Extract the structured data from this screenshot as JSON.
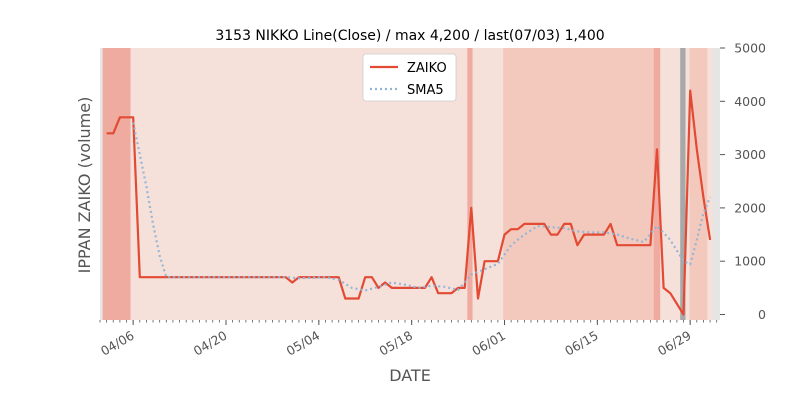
{
  "chart_data": {
    "type": "line",
    "title": "3153 NIKKO Line(Close) / max 4,200 / last(07/03) 1,400",
    "xlabel": "DATE",
    "ylabel": "IPPAN ZAIKO (volume)",
    "ylim": [
      0,
      5000
    ],
    "yticks": [
      0,
      1000,
      2000,
      3000,
      4000,
      5000
    ],
    "ytick_position": "right",
    "xtick_labels": [
      "04/06",
      "04/20",
      "05/04",
      "05/18",
      "06/01",
      "06/15",
      "06/29"
    ],
    "xtick_days": [
      5,
      19,
      33,
      47,
      61,
      75,
      89
    ],
    "date_start": "04/01",
    "date_end": "07/03",
    "legend_position": "top-center",
    "grid": false,
    "colors": {
      "zaiko": "#e24a33",
      "sma": "#8eb4d6",
      "plot_bg": "#e5e5e5",
      "band_light": "#f6e0da",
      "band_mid": "#f3c9be",
      "band_dark": "#efaba0",
      "band_gray": "#a8a8a8"
    },
    "series": [
      {
        "name": "ZAIKO",
        "style": "solid",
        "points": [
          [
            1,
            3400
          ],
          [
            2,
            3400
          ],
          [
            3,
            3700
          ],
          [
            4,
            3700
          ],
          [
            5,
            3700
          ],
          [
            6,
            700
          ],
          [
            7,
            700
          ],
          [
            8,
            700
          ],
          [
            9,
            700
          ],
          [
            10,
            700
          ],
          [
            11,
            700
          ],
          [
            12,
            700
          ],
          [
            13,
            700
          ],
          [
            14,
            700
          ],
          [
            15,
            700
          ],
          [
            16,
            700
          ],
          [
            17,
            700
          ],
          [
            18,
            700
          ],
          [
            19,
            700
          ],
          [
            20,
            700
          ],
          [
            21,
            700
          ],
          [
            22,
            700
          ],
          [
            23,
            700
          ],
          [
            24,
            700
          ],
          [
            25,
            700
          ],
          [
            26,
            700
          ],
          [
            27,
            700
          ],
          [
            28,
            700
          ],
          [
            29,
            600
          ],
          [
            30,
            700
          ],
          [
            31,
            700
          ],
          [
            32,
            700
          ],
          [
            33,
            700
          ],
          [
            34,
            700
          ],
          [
            35,
            700
          ],
          [
            36,
            700
          ],
          [
            37,
            300
          ],
          [
            38,
            300
          ],
          [
            39,
            300
          ],
          [
            40,
            700
          ],
          [
            41,
            700
          ],
          [
            42,
            500
          ],
          [
            43,
            600
          ],
          [
            44,
            500
          ],
          [
            45,
            500
          ],
          [
            46,
            500
          ],
          [
            47,
            500
          ],
          [
            48,
            500
          ],
          [
            49,
            500
          ],
          [
            50,
            700
          ],
          [
            51,
            400
          ],
          [
            52,
            400
          ],
          [
            53,
            400
          ],
          [
            54,
            500
          ],
          [
            55,
            500
          ],
          [
            56,
            2000
          ],
          [
            57,
            300
          ],
          [
            58,
            1000
          ],
          [
            59,
            1000
          ],
          [
            60,
            1000
          ],
          [
            61,
            1500
          ],
          [
            62,
            1600
          ],
          [
            63,
            1600
          ],
          [
            64,
            1700
          ],
          [
            65,
            1700
          ],
          [
            66,
            1700
          ],
          [
            67,
            1700
          ],
          [
            68,
            1500
          ],
          [
            69,
            1500
          ],
          [
            70,
            1700
          ],
          [
            71,
            1700
          ],
          [
            72,
            1300
          ],
          [
            73,
            1500
          ],
          [
            74,
            1500
          ],
          [
            75,
            1500
          ],
          [
            76,
            1500
          ],
          [
            77,
            1700
          ],
          [
            78,
            1300
          ],
          [
            79,
            1300
          ],
          [
            80,
            1300
          ],
          [
            81,
            1300
          ],
          [
            82,
            1300
          ],
          [
            83,
            1300
          ],
          [
            84,
            3100
          ],
          [
            85,
            500
          ],
          [
            86,
            400
          ],
          [
            87,
            200
          ],
          [
            88,
            0
          ],
          [
            89,
            4200
          ],
          [
            90,
            3100
          ],
          [
            91,
            2200
          ],
          [
            92,
            1400
          ]
        ]
      },
      {
        "name": "SMA5",
        "style": "dotted",
        "points": [
          [
            5,
            3600
          ],
          [
            6,
            3000
          ],
          [
            7,
            2400
          ],
          [
            8,
            1700
          ],
          [
            9,
            1100
          ],
          [
            10,
            700
          ],
          [
            20,
            700
          ],
          [
            28,
            700
          ],
          [
            30,
            680
          ],
          [
            34,
            700
          ],
          [
            36,
            650
          ],
          [
            38,
            500
          ],
          [
            40,
            450
          ],
          [
            42,
            520
          ],
          [
            44,
            600
          ],
          [
            46,
            560
          ],
          [
            48,
            500
          ],
          [
            50,
            540
          ],
          [
            52,
            520
          ],
          [
            54,
            460
          ],
          [
            56,
            750
          ],
          [
            58,
            850
          ],
          [
            60,
            950
          ],
          [
            62,
            1300
          ],
          [
            64,
            1500
          ],
          [
            66,
            1660
          ],
          [
            68,
            1640
          ],
          [
            70,
            1620
          ],
          [
            72,
            1560
          ],
          [
            74,
            1540
          ],
          [
            76,
            1540
          ],
          [
            78,
            1500
          ],
          [
            80,
            1420
          ],
          [
            82,
            1360
          ],
          [
            84,
            1660
          ],
          [
            86,
            1400
          ],
          [
            88,
            1000
          ],
          [
            89,
            940
          ],
          [
            90,
            1400
          ],
          [
            91,
            1900
          ],
          [
            92,
            2200
          ]
        ]
      }
    ],
    "bands": [
      {
        "from": 0.4,
        "to": 4.6,
        "level": "dark"
      },
      {
        "from": 4.6,
        "to": 55.4,
        "level": "light"
      },
      {
        "from": 55.4,
        "to": 56.2,
        "level": "dark"
      },
      {
        "from": 56.2,
        "to": 60.8,
        "level": "light"
      },
      {
        "from": 60.8,
        "to": 83.5,
        "level": "mid"
      },
      {
        "from": 83.5,
        "to": 84.5,
        "level": "dark"
      },
      {
        "from": 84.5,
        "to": 87.5,
        "level": "light"
      },
      {
        "from": 87.5,
        "to": 88.3,
        "level": "gray"
      },
      {
        "from": 88.3,
        "to": 88.9,
        "level": "light"
      },
      {
        "from": 88.9,
        "to": 91.6,
        "level": "mid"
      },
      {
        "from": 91.6,
        "to": 92.4,
        "level": "light"
      }
    ]
  }
}
